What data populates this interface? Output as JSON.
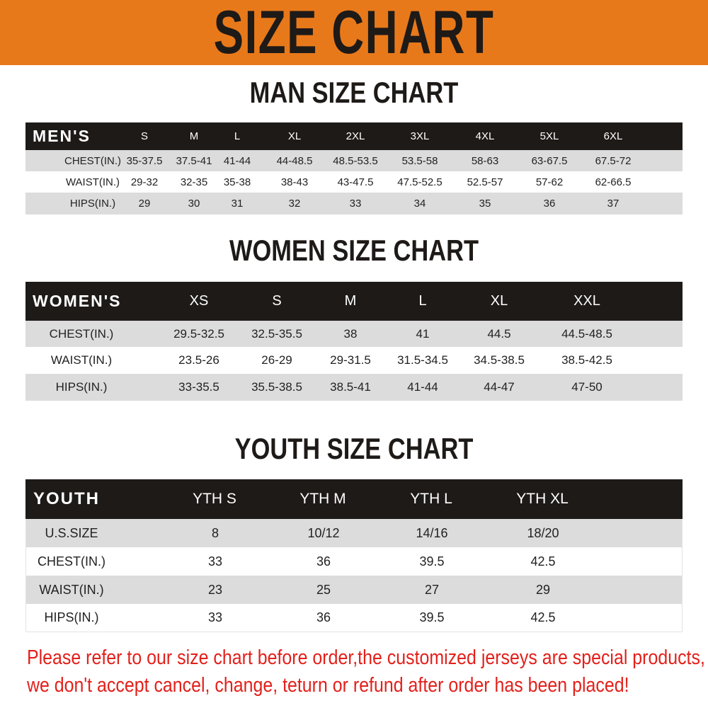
{
  "banner_title": "SIZE CHART",
  "colors": {
    "banner": "#e8791a",
    "header": "#1e1a18",
    "stripe": "#dcdcdc",
    "notice": "#e3201b"
  },
  "men": {
    "title": "MAN SIZE CHART",
    "header_label": "MEN'S",
    "sizes": [
      "S",
      "M",
      "L",
      "XL",
      "2XL",
      "3XL",
      "4XL",
      "5XL",
      "6XL"
    ],
    "rows": [
      {
        "label": "CHEST(IN.)",
        "values": [
          "35-37.5",
          "37.5-41",
          "41-44",
          "44-48.5",
          "48.5-53.5",
          "53.5-58",
          "58-63",
          "63-67.5",
          "67.5-72"
        ]
      },
      {
        "label": "WAIST(IN.)",
        "values": [
          "29-32",
          "32-35",
          "35-38",
          "38-43",
          "43-47.5",
          "47.5-52.5",
          "52.5-57",
          "57-62",
          "62-66.5"
        ]
      },
      {
        "label": "HIPS(IN.)",
        "values": [
          "29",
          "30",
          "31",
          "32",
          "33",
          "34",
          "35",
          "36",
          "37"
        ]
      }
    ]
  },
  "women": {
    "title": "WOMEN SIZE CHART",
    "header_label": "WOMEN'S",
    "sizes": [
      "XS",
      "S",
      "M",
      "L",
      "XL",
      "XXL"
    ],
    "rows": [
      {
        "label": "CHEST(IN.)",
        "values": [
          "29.5-32.5",
          "32.5-35.5",
          "38",
          "41",
          "44.5",
          "44.5-48.5"
        ]
      },
      {
        "label": "WAIST(IN.)",
        "values": [
          "23.5-26",
          "26-29",
          "29-31.5",
          "31.5-34.5",
          "34.5-38.5",
          "38.5-42.5"
        ]
      },
      {
        "label": "HIPS(IN.)",
        "values": [
          "33-35.5",
          "35.5-38.5",
          "38.5-41",
          "41-44",
          "44-47",
          "47-50"
        ]
      }
    ]
  },
  "youth": {
    "title": "YOUTH SIZE CHART",
    "header_label": "YOUTH",
    "sizes": [
      "YTH S",
      "YTH M",
      "YTH L",
      "YTH XL"
    ],
    "rows": [
      {
        "label": "U.S.SIZE",
        "values": [
          "8",
          "10/12",
          "14/16",
          "18/20"
        ]
      },
      {
        "label": "CHEST(IN.)",
        "values": [
          "33",
          "36",
          "39.5",
          "42.5"
        ]
      },
      {
        "label": "WAIST(IN.)",
        "values": [
          "23",
          "25",
          "27",
          "29"
        ]
      },
      {
        "label": "HIPS(IN.)",
        "values": [
          "33",
          "36",
          "39.5",
          "42.5"
        ]
      }
    ]
  },
  "notice": [
    "Please refer to our size chart before order,the customized jerseys are special products,",
    "we don't accept cancel, change, teturn or refund after order has been placed!"
  ]
}
